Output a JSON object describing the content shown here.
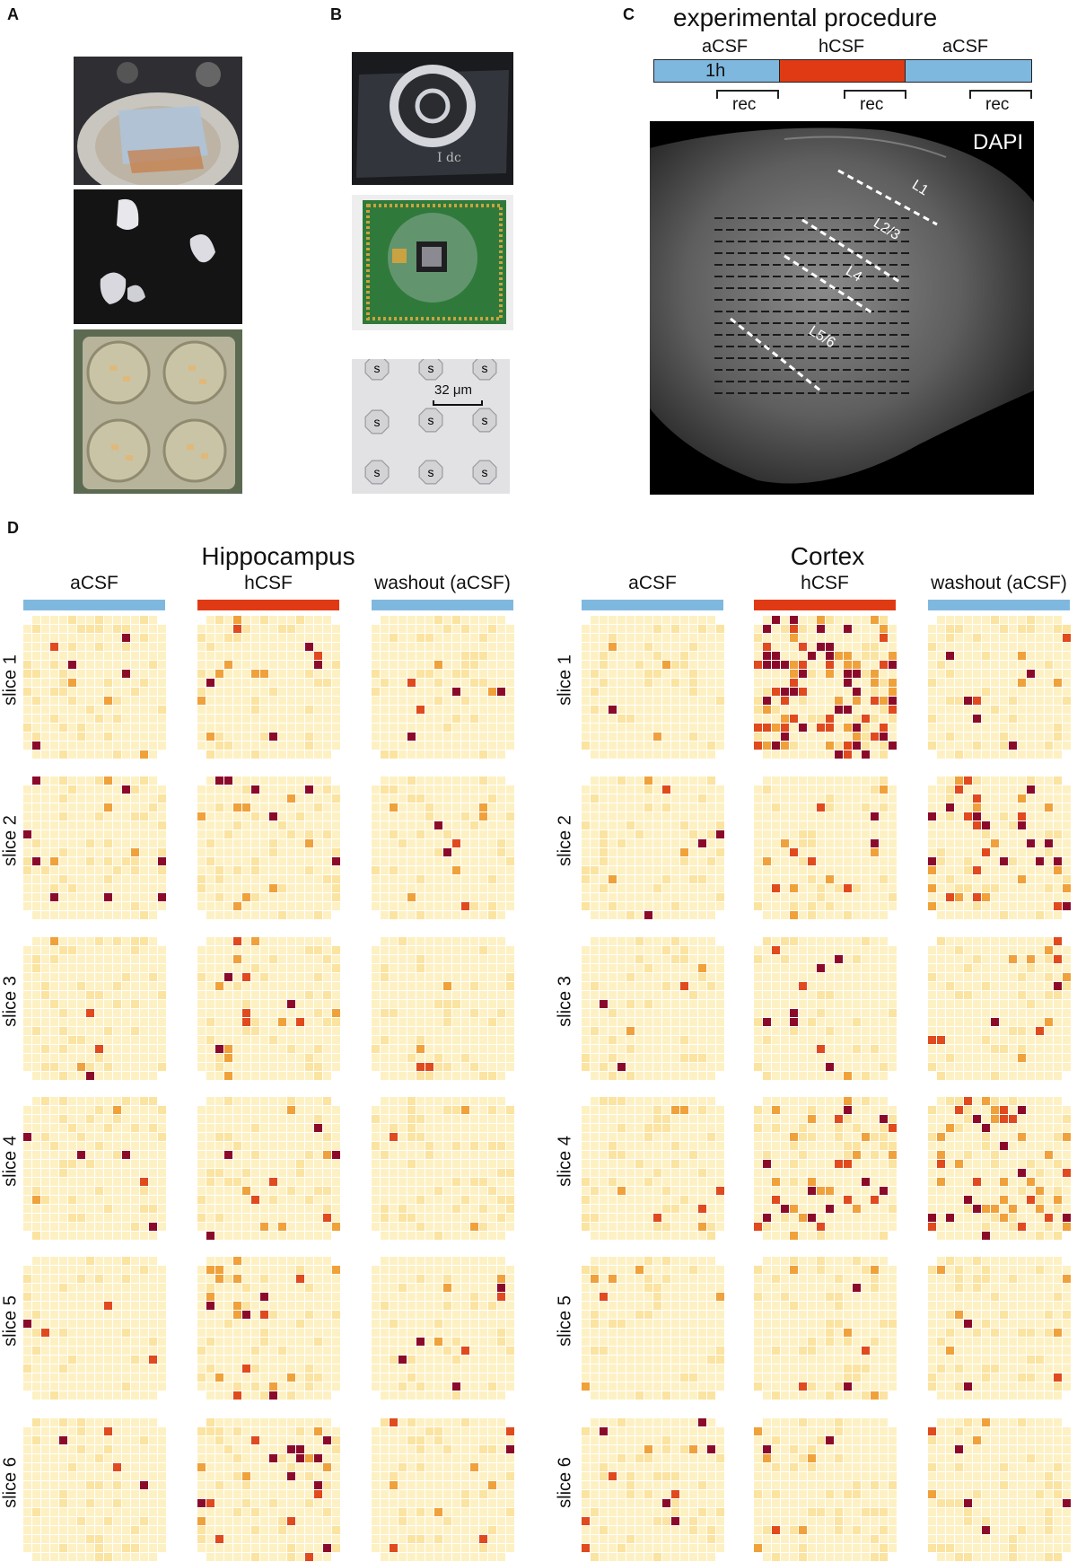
{
  "panels": {
    "a": "A",
    "b": "B",
    "c": "C",
    "d": "D"
  },
  "panel_b": {
    "scale_label": "32 μm",
    "electrode_label": "s"
  },
  "panel_c": {
    "title": "experimental procedure",
    "phases": [
      "aCSF",
      "hCSF",
      "aCSF"
    ],
    "duration_label": "1h",
    "rec_label": "rec",
    "stain_label": "DAPI",
    "layers": [
      "L1",
      "L2/3",
      "L4",
      "L5/6"
    ]
  },
  "panel_d": {
    "regions": [
      "Hippocampus",
      "Cortex"
    ],
    "conditions": [
      "aCSF",
      "hCSF",
      "washout (aCSF)"
    ],
    "slices": [
      "slice 1",
      "slice 2",
      "slice 3",
      "slice 4",
      "slice 5",
      "slice 6"
    ]
  },
  "colors": {
    "acsf": "#7fb8df",
    "hcsf": "#e03a14",
    "cell_base": "#fdf1c4",
    "cell_light": "#fbe3a0",
    "cell_orange": "#f0a13a",
    "cell_red": "#e04a1c",
    "cell_dark": "#8b0a2a"
  },
  "chart_data": {
    "type": "heatmap",
    "grid": "16x16 electrode activity maps",
    "regions": [
      "Hippocampus",
      "Cortex"
    ],
    "conditions": [
      "aCSF",
      "hCSF",
      "washout (aCSF)"
    ],
    "slices": [
      "slice 1",
      "slice 2",
      "slice 3",
      "slice 4",
      "slice 5",
      "slice 6"
    ]
  }
}
